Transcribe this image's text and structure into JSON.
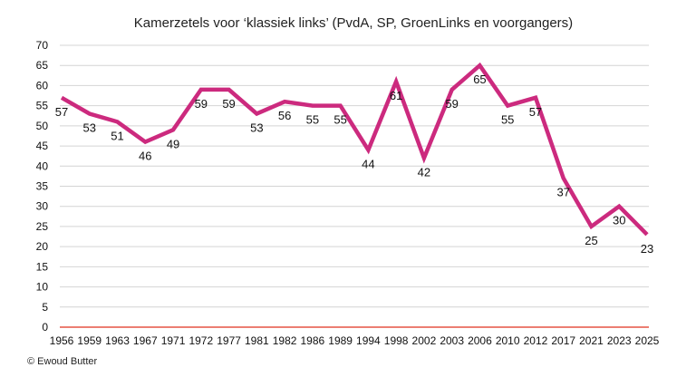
{
  "chart_data": {
    "type": "line",
    "title": "Kamerzetels voor ‘klassiek links’ (PvdA, SP, GroenLinks en voorgangers)",
    "categories": [
      "1956",
      "1959",
      "1963",
      "1967",
      "1971",
      "1972",
      "1977",
      "1981",
      "1982",
      "1986",
      "1989",
      "1994",
      "1998",
      "2002",
      "2003",
      "2006",
      "2010",
      "2012",
      "2017",
      "2021",
      "2023",
      "2025"
    ],
    "series": [
      {
        "values": [
          57,
          53,
          51,
          46,
          49,
          59,
          59,
          53,
          56,
          55,
          55,
          44,
          61,
          42,
          59,
          65,
          55,
          57,
          37,
          25,
          30,
          23
        ]
      }
    ],
    "ylim": [
      0,
      70
    ],
    "yticks": [
      "0",
      "5",
      "10",
      "15",
      "20",
      "25",
      "30",
      "35",
      "40",
      "45",
      "50",
      "55",
      "60",
      "65",
      "70"
    ],
    "grid": true,
    "line_color": "#cc2a7e",
    "baseline_color": "#e0301e",
    "grid_color": "#d4d4d4",
    "credit": "© Ewoud Butter"
  }
}
